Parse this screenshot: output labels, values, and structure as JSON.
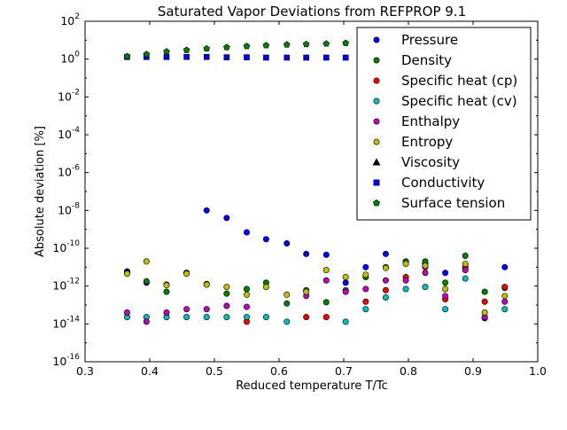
{
  "chart_data": {
    "type": "scatter",
    "title": "Saturated Vapor Deviations from REFPROP 9.1",
    "xlabel": "Reduced temperature T/Tc",
    "ylabel": "Absolute deviation [%]",
    "xscale": "linear",
    "yscale": "log",
    "xlim": [
      0.3,
      1.0
    ],
    "ylim": [
      1e-16,
      100
    ],
    "x_ticks": [
      {
        "value": 0.3,
        "label": "0.3"
      },
      {
        "value": 0.4,
        "label": "0.4"
      },
      {
        "value": 0.5,
        "label": "0.5"
      },
      {
        "value": 0.6,
        "label": "0.6"
      },
      {
        "value": 0.7,
        "label": "0.7"
      },
      {
        "value": 0.8,
        "label": "0.8"
      },
      {
        "value": 0.9,
        "label": "0.9"
      },
      {
        "value": 1.0,
        "label": "1.0"
      }
    ],
    "y_ticks": [
      {
        "value": 1e-16,
        "base": "10",
        "exp": "-16"
      },
      {
        "value": 1e-14,
        "base": "10",
        "exp": "-14"
      },
      {
        "value": 1e-12,
        "base": "10",
        "exp": "-12"
      },
      {
        "value": 1e-10,
        "base": "10",
        "exp": "-10"
      },
      {
        "value": 1e-08,
        "base": "10",
        "exp": "-8"
      },
      {
        "value": 1e-06,
        "base": "10",
        "exp": "-6"
      },
      {
        "value": 0.0001,
        "base": "10",
        "exp": "-4"
      },
      {
        "value": 0.01,
        "base": "10",
        "exp": "-2"
      },
      {
        "value": 1,
        "base": "10",
        "exp": "0"
      },
      {
        "value": 100,
        "base": "10",
        "exp": "2"
      }
    ],
    "grid": false,
    "legend_position": "top-right",
    "series": [
      {
        "name": "Pressure",
        "marker": "circle",
        "color": "#0000ff",
        "points": [
          [
            0.365,
            6e-12
          ],
          [
            0.395,
            1.5e-12
          ],
          [
            0.426,
            1.2e-12
          ],
          [
            0.457,
            5e-12
          ],
          [
            0.488,
            1e-08
          ],
          [
            0.519,
            4e-09
          ],
          [
            0.55,
            7e-10
          ],
          [
            0.58,
            3e-10
          ],
          [
            0.612,
            1.8e-10
          ],
          [
            0.642,
            5e-11
          ],
          [
            0.673,
            4.5e-11
          ],
          [
            0.703,
            1.5e-12
          ],
          [
            0.734,
            1e-11
          ],
          [
            0.765,
            5e-11
          ],
          [
            0.796,
            2e-11
          ],
          [
            0.826,
            1.5e-11
          ],
          [
            0.857,
            5e-12
          ],
          [
            0.888,
            1e-11
          ],
          [
            0.918,
            2e-14
          ],
          [
            0.949,
            1e-11
          ]
        ]
      },
      {
        "name": "Density",
        "marker": "circle",
        "color": "#008000",
        "points": [
          [
            0.365,
            5e-12
          ],
          [
            0.395,
            1.8e-12
          ],
          [
            0.426,
            5e-13
          ],
          [
            0.457,
            5e-12
          ],
          [
            0.488,
            1.3e-12
          ],
          [
            0.519,
            4e-13
          ],
          [
            0.55,
            7e-13
          ],
          [
            0.58,
            1.5e-12
          ],
          [
            0.612,
            1.2e-13
          ],
          [
            0.642,
            6e-13
          ],
          [
            0.673,
            1.4e-13
          ],
          [
            0.703,
            6e-13
          ],
          [
            0.734,
            3e-12
          ],
          [
            0.765,
            1e-11
          ],
          [
            0.796,
            2e-11
          ],
          [
            0.826,
            2e-11
          ],
          [
            0.857,
            1.5e-12
          ],
          [
            0.888,
            4e-11
          ],
          [
            0.918,
            5e-13
          ],
          [
            0.949,
            8e-13
          ]
        ]
      },
      {
        "name": "Specific heat (cp)",
        "marker": "circle",
        "color": "#ff0000",
        "points": [
          [
            0.55,
            1.3e-14
          ],
          [
            0.642,
            2.3e-14
          ],
          [
            0.673,
            2.3e-14
          ],
          [
            0.734,
            1.5e-13
          ],
          [
            0.765,
            6e-13
          ],
          [
            0.796,
            3e-12
          ],
          [
            0.826,
            1e-11
          ],
          [
            0.857,
            2e-13
          ],
          [
            0.888,
            1e-11
          ],
          [
            0.918,
            1.5e-13
          ],
          [
            0.949,
            9e-13
          ]
        ]
      },
      {
        "name": "Specific heat (cv)",
        "marker": "circle",
        "color": "#00bfbf",
        "points": [
          [
            0.365,
            2.3e-14
          ],
          [
            0.395,
            2.3e-14
          ],
          [
            0.426,
            2.3e-14
          ],
          [
            0.457,
            2.3e-14
          ],
          [
            0.488,
            2.3e-14
          ],
          [
            0.519,
            2.3e-14
          ],
          [
            0.55,
            2.3e-14
          ],
          [
            0.58,
            2.3e-14
          ],
          [
            0.612,
            1.3e-14
          ],
          [
            0.703,
            1.3e-14
          ],
          [
            0.734,
            6e-14
          ],
          [
            0.765,
            2.5e-13
          ],
          [
            0.796,
            7e-13
          ],
          [
            0.826,
            9e-13
          ],
          [
            0.857,
            6e-14
          ],
          [
            0.888,
            2.5e-12
          ],
          [
            0.949,
            6e-14
          ]
        ]
      },
      {
        "name": "Enthalpy",
        "marker": "circle",
        "color": "#bf00bf",
        "points": [
          [
            0.365,
            4e-14
          ],
          [
            0.395,
            1.3e-14
          ],
          [
            0.426,
            4e-14
          ],
          [
            0.457,
            6e-14
          ],
          [
            0.488,
            6e-14
          ],
          [
            0.519,
            9e-14
          ],
          [
            0.55,
            8e-14
          ],
          [
            0.642,
            3e-13
          ],
          [
            0.673,
            2e-12
          ],
          [
            0.703,
            5e-13
          ],
          [
            0.734,
            7e-13
          ],
          [
            0.765,
            2e-12
          ],
          [
            0.796,
            2e-12
          ],
          [
            0.826,
            5e-12
          ],
          [
            0.857,
            3e-13
          ],
          [
            0.888,
            7e-12
          ],
          [
            0.918,
            2.3e-14
          ],
          [
            0.949,
            1.5e-13
          ]
        ]
      },
      {
        "name": "Entropy",
        "marker": "circle",
        "color": "#bfbf00",
        "points": [
          [
            0.365,
            4.5e-12
          ],
          [
            0.395,
            2e-11
          ],
          [
            0.426,
            1.1e-12
          ],
          [
            0.457,
            4.5e-12
          ],
          [
            0.488,
            1.2e-12
          ],
          [
            0.519,
            9e-13
          ],
          [
            0.55,
            3.5e-13
          ],
          [
            0.58,
            9e-13
          ],
          [
            0.612,
            3.5e-13
          ],
          [
            0.642,
            5e-13
          ],
          [
            0.673,
            7e-12
          ],
          [
            0.703,
            3e-12
          ],
          [
            0.734,
            4e-12
          ],
          [
            0.765,
            9e-12
          ],
          [
            0.796,
            1.5e-11
          ],
          [
            0.826,
            1.2e-11
          ],
          [
            0.857,
            7e-13
          ],
          [
            0.888,
            1.5e-11
          ],
          [
            0.918,
            4e-14
          ],
          [
            0.949,
            3e-13
          ]
        ]
      },
      {
        "name": "Viscosity",
        "marker": "triangle",
        "color": "#000000",
        "points": []
      },
      {
        "name": "Conductivity",
        "marker": "square",
        "color": "#0000ff",
        "points": [
          [
            0.365,
            1.3
          ],
          [
            0.395,
            1.3
          ],
          [
            0.426,
            1.3
          ],
          [
            0.457,
            1.3
          ],
          [
            0.488,
            1.3
          ],
          [
            0.519,
            1.25
          ],
          [
            0.55,
            1.25
          ],
          [
            0.58,
            1.2
          ],
          [
            0.612,
            1.2
          ],
          [
            0.642,
            1.2
          ],
          [
            0.673,
            1.2
          ],
          [
            0.703,
            1.2
          ]
        ]
      },
      {
        "name": "Surface tension",
        "marker": "pentagon",
        "color": "#008000",
        "points": [
          [
            0.365,
            1.4
          ],
          [
            0.395,
            1.8
          ],
          [
            0.426,
            2.5
          ],
          [
            0.457,
            3
          ],
          [
            0.488,
            3.6
          ],
          [
            0.519,
            4.2
          ],
          [
            0.55,
            4.8
          ],
          [
            0.58,
            5.3
          ],
          [
            0.612,
            5.8
          ],
          [
            0.642,
            6.1
          ],
          [
            0.673,
            6.5
          ],
          [
            0.703,
            7
          ]
        ]
      }
    ]
  }
}
